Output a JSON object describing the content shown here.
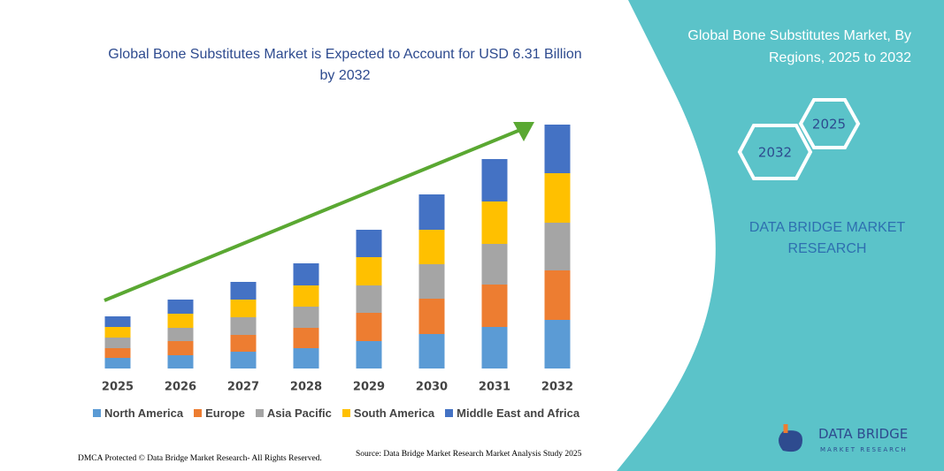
{
  "chart_data": {
    "type": "bar",
    "stacked": true,
    "title": "Global Bone Substitutes Market is Expected to Account for USD 6.31 Billion by 2032",
    "categories": [
      "2025",
      "2026",
      "2027",
      "2028",
      "2029",
      "2030",
      "2031",
      "2032"
    ],
    "series": [
      {
        "name": "North America",
        "color": "#5b9bd5",
        "values": [
          12,
          15,
          19,
          23,
          31,
          39,
          47,
          55
        ]
      },
      {
        "name": "Europe",
        "color": "#ed7d31",
        "values": [
          11,
          16,
          19,
          23,
          32,
          40,
          48,
          56
        ]
      },
      {
        "name": "Asia Pacific",
        "color": "#a5a5a5",
        "values": [
          12,
          15,
          20,
          24,
          31,
          39,
          46,
          54
        ]
      },
      {
        "name": "South America",
        "color": "#ffc000",
        "values": [
          12,
          16,
          20,
          24,
          32,
          39,
          48,
          56
        ]
      },
      {
        "name": "Middle East and Africa",
        "color": "#4472c4",
        "values": [
          12,
          16,
          20,
          25,
          31,
          40,
          48,
          55
        ]
      }
    ]
  },
  "panel": {
    "title": "Global Bone Substitutes Market, By Regions, 2025 to 2032",
    "hexagons": [
      "2025",
      "2032"
    ],
    "brand": "DATA BRIDGE MARKET RESEARCH"
  },
  "footer": {
    "copyright": "DMCA Protected © Data Bridge Market Research- All Rights Reserved.",
    "source": "Source: Data Bridge Market Research  Market Analysis Study 2025"
  },
  "logo": {
    "name": "DATA BRIDGE",
    "tagline": "MARKET RESEARCH"
  }
}
